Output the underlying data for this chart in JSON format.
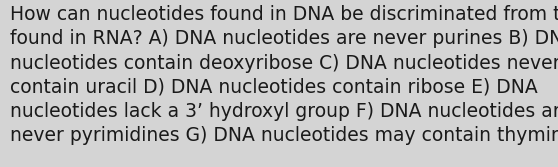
{
  "lines": [
    "How can nucleotides found in DNA be discriminated from those",
    "found in RNA? A) DNA nucleotides are never purines B) DNA",
    "nucleotides contain deoxyribose C) DNA nucleotides never",
    "contain uracil D) DNA nucleotides contain ribose E) DNA",
    "nucleotides lack a 3’ hydroxyl group F) DNA nucleotides are",
    "never pyrimidines G) DNA nucleotides may contain thymine"
  ],
  "background_color": "#d4d4d4",
  "text_color": "#1a1a1a",
  "font_size": 13.5,
  "font_family": "DejaVu Sans",
  "fig_width": 5.58,
  "fig_height": 1.67,
  "dpi": 100
}
